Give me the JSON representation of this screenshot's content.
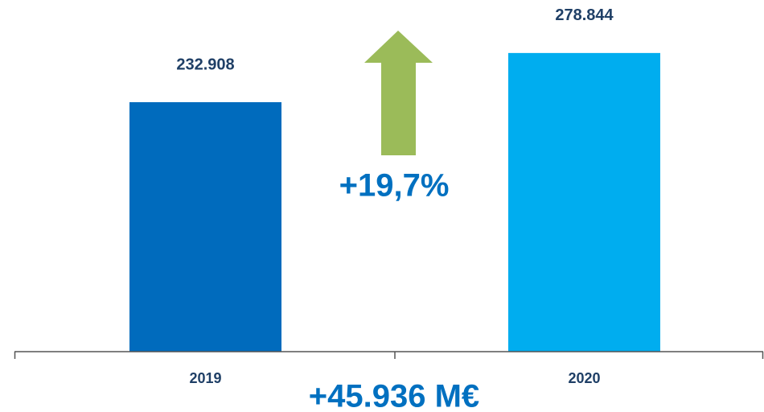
{
  "chart_data": {
    "type": "bar",
    "categories": [
      "2019",
      "2020"
    ],
    "values": [
      232908,
      278844
    ],
    "value_labels": [
      "232.908",
      "278.844"
    ],
    "colors": [
      "#006bbd",
      "#00adef"
    ],
    "ylim": [
      0,
      300000
    ],
    "annotations": [
      "+19,7%",
      "+45.936 M€"
    ]
  }
}
